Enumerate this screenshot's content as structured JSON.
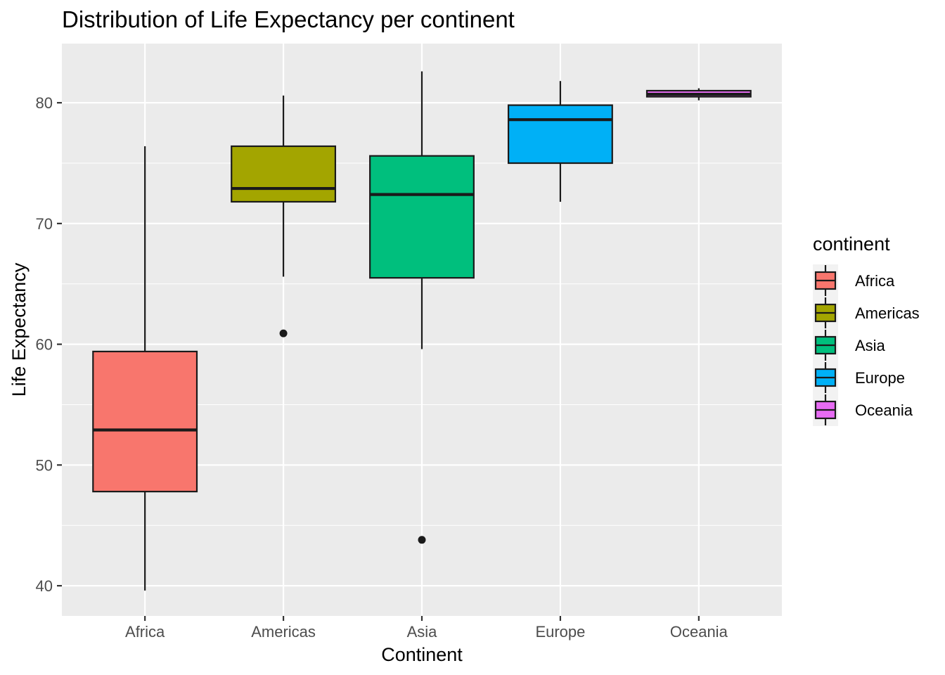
{
  "chart_data": {
    "type": "boxplot",
    "title": "Distribution of Life Expectancy per continent",
    "xlabel": "Continent",
    "ylabel": "Life Expectancy",
    "ylim": [
      37.5,
      84.9
    ],
    "yticks": [
      40,
      50,
      60,
      70,
      80
    ],
    "grid": true,
    "legend": {
      "title": "continent",
      "position": "right"
    },
    "categories": [
      "Africa",
      "Americas",
      "Asia",
      "Europe",
      "Oceania"
    ],
    "colors": [
      "#F8766D",
      "#A3A500",
      "#00BF7D",
      "#00B0F6",
      "#E76BF3"
    ],
    "boxes": [
      {
        "category": "Africa",
        "min": 39.6,
        "q1": 47.8,
        "median": 52.9,
        "q3": 59.4,
        "max": 76.4,
        "outliers": []
      },
      {
        "category": "Americas",
        "min": 65.6,
        "q1": 71.8,
        "median": 72.9,
        "q3": 76.4,
        "max": 80.6,
        "outliers": [
          60.9
        ]
      },
      {
        "category": "Asia",
        "min": 59.6,
        "q1": 65.5,
        "median": 72.4,
        "q3": 75.6,
        "max": 82.6,
        "outliers": [
          43.8
        ]
      },
      {
        "category": "Europe",
        "min": 71.8,
        "q1": 75.0,
        "median": 78.6,
        "q3": 79.8,
        "max": 81.8,
        "outliers": []
      },
      {
        "category": "Oceania",
        "min": 80.2,
        "q1": 80.5,
        "median": 80.7,
        "q3": 81.0,
        "max": 81.2,
        "outliers": []
      }
    ]
  }
}
